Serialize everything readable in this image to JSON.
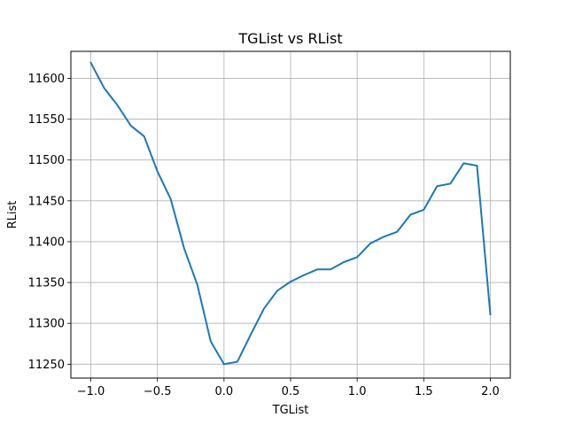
{
  "chart_data": {
    "type": "line",
    "title": "TGList vs RList",
    "xlabel": "TGList",
    "ylabel": "RList",
    "xlim": [
      -1.15,
      2.15
    ],
    "ylim": [
      11233,
      11633
    ],
    "xticks": [
      -1.0,
      -0.5,
      0.0,
      0.5,
      1.0,
      1.5,
      2.0
    ],
    "xtick_labels": [
      "−1.0",
      "−0.5",
      "0.0",
      "0.5",
      "1.0",
      "1.5",
      "2.0"
    ],
    "yticks": [
      11250,
      11300,
      11350,
      11400,
      11450,
      11500,
      11550,
      11600
    ],
    "ytick_labels": [
      "11250",
      "11300",
      "11350",
      "11400",
      "11450",
      "11500",
      "11550",
      "11600"
    ],
    "grid": true,
    "series": [
      {
        "name": "RList",
        "color": "#1f77b4",
        "x": [
          -1.0,
          -0.9,
          -0.8,
          -0.7,
          -0.6,
          -0.5,
          -0.4,
          -0.3,
          -0.2,
          -0.1,
          0.0,
          0.1,
          0.2,
          0.3,
          0.4,
          0.5,
          0.6,
          0.7,
          0.8,
          0.9,
          1.0,
          1.1,
          1.2,
          1.3,
          1.4,
          1.5,
          1.6,
          1.7,
          1.8,
          1.9,
          2.0
        ],
        "y": [
          11619,
          11588,
          11567,
          11542,
          11529,
          11486,
          11452,
          11392,
          11347,
          11278,
          11250,
          11253,
          11286,
          11318,
          11340,
          11351,
          11359,
          11366,
          11366,
          11375,
          11381,
          11398,
          11406,
          11412,
          11433,
          11439,
          11468,
          11471,
          11496,
          11493,
          11311
        ]
      }
    ]
  }
}
